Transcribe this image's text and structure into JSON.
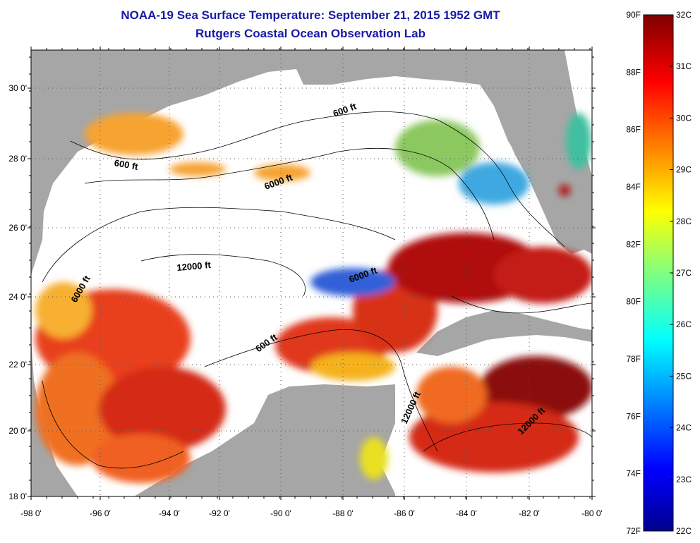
{
  "title": {
    "line1": "NOAA-19 Sea Surface Temperature:  September 21, 2015 1952 GMT",
    "line2": "Rutgers Coastal Ocean Observation Lab"
  },
  "map": {
    "x_ticks": [
      "-98 0'",
      "-96 0'",
      "-94 0'",
      "-92 0'",
      "-90 0'",
      "-88 0'",
      "-86 0'",
      "-84 0'",
      "-82 0'",
      "-80 0'"
    ],
    "y_ticks": [
      "30 0'",
      "28 0'",
      "26 0'",
      "24 0'",
      "22 0'",
      "20 0'",
      "18 0'"
    ],
    "contour_labels": [
      {
        "text": "600 ft"
      },
      {
        "text": "600 ft"
      },
      {
        "text": "6000 ft"
      },
      {
        "text": "12000 ft"
      },
      {
        "text": "6000 ft"
      },
      {
        "text": "6000 ft"
      },
      {
        "text": "600 ft"
      },
      {
        "text": "12000 ft"
      },
      {
        "text": "12000 ft"
      }
    ]
  },
  "colorbar": {
    "f_labels": [
      "90F",
      "88F",
      "86F",
      "84F",
      "82F",
      "80F",
      "78F",
      "76F",
      "74F",
      "72F"
    ],
    "c_labels": [
      "32C",
      "31C",
      "30C",
      "29C",
      "28C",
      "27C",
      "26C",
      "25C",
      "24C",
      "23C",
      "22C"
    ]
  },
  "colors": {
    "title": "#1a1aa6",
    "land": "#a6a6a6",
    "no_data": "#ffffff",
    "scale_low": "#00008f",
    "scale_high": "#7f0000"
  }
}
